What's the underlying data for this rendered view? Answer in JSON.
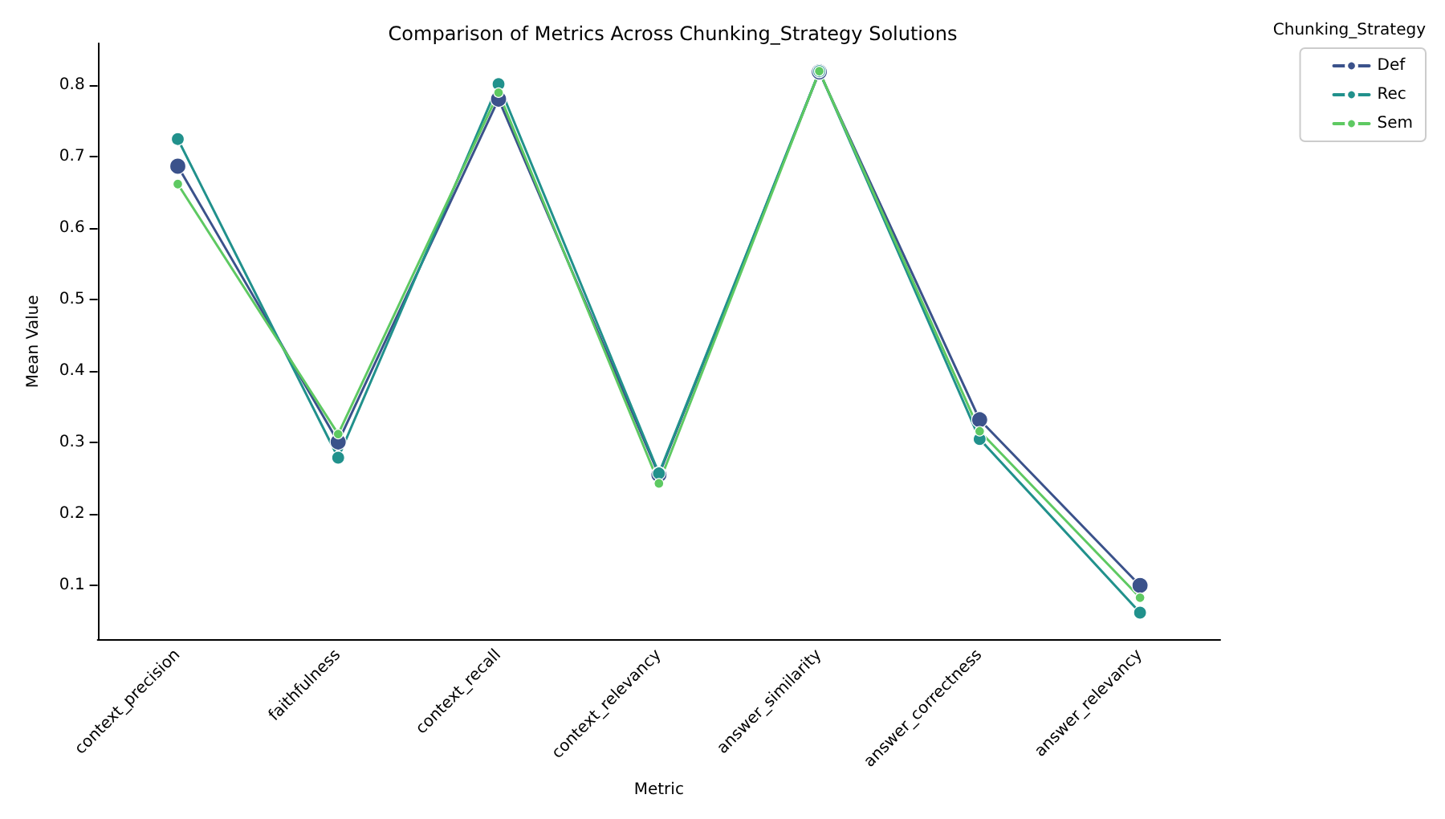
{
  "chart_data": {
    "type": "line",
    "title": "Comparison of Metrics Across Chunking_Strategy Solutions",
    "xlabel": "Metric",
    "ylabel": "Mean Value",
    "legend_title": "Chunking_Strategy",
    "categories": [
      "context_precision",
      "faithfulness",
      "context_recall",
      "context_relevancy",
      "answer_similarity",
      "answer_correctness",
      "answer_relevancy"
    ],
    "series": [
      {
        "name": "Def",
        "color": "#3b528b",
        "values": [
          0.687,
          0.301,
          0.781,
          0.255,
          0.819,
          0.332,
          0.1
        ]
      },
      {
        "name": "Rec",
        "color": "#21918c",
        "values": [
          0.725,
          0.279,
          0.802,
          0.257,
          0.82,
          0.305,
          0.062
        ]
      },
      {
        "name": "Sem",
        "color": "#5ec962",
        "values": [
          0.662,
          0.312,
          0.79,
          0.243,
          0.82,
          0.316,
          0.083
        ]
      }
    ],
    "ylim": [
      0.024,
      0.859
    ],
    "yticks": [
      0.1,
      0.2,
      0.3,
      0.4,
      0.5,
      0.6,
      0.7,
      0.8
    ],
    "grid": false,
    "legend": "top right",
    "marker": "circle",
    "line_style": "solid"
  }
}
